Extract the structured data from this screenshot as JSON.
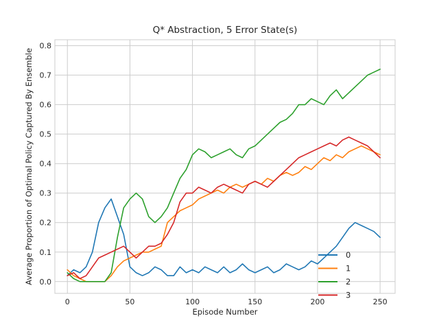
{
  "chart_data": {
    "type": "line",
    "title": "Q* Abstraction, 5 Error State(s)",
    "xlabel": "Episode Number",
    "ylabel": "Average Proportion of Optimal Policy Captured By Ensemble",
    "xlim": [
      -10,
      262
    ],
    "ylim": [
      -0.04,
      0.82
    ],
    "xticks": [
      0,
      50,
      100,
      150,
      200,
      250
    ],
    "yticks": [
      0.0,
      0.1,
      0.2,
      0.3,
      0.4,
      0.5,
      0.6,
      0.7,
      0.8
    ],
    "ytick_labels": [
      "0.0",
      "0.1",
      "0.2",
      "0.3",
      "0.4",
      "0.5",
      "0.6",
      "0.7",
      "0.8"
    ],
    "grid": true,
    "legend_position": "lower-right",
    "x_step": 5,
    "series": [
      {
        "name": "0",
        "color": "#1f77b4",
        "values": [
          0.02,
          0.04,
          0.03,
          0.05,
          0.1,
          0.2,
          0.25,
          0.28,
          0.22,
          0.16,
          0.05,
          0.03,
          0.02,
          0.03,
          0.05,
          0.04,
          0.02,
          0.02,
          0.05,
          0.03,
          0.04,
          0.03,
          0.05,
          0.04,
          0.03,
          0.05,
          0.03,
          0.04,
          0.06,
          0.04,
          0.03,
          0.04,
          0.05,
          0.03,
          0.04,
          0.06,
          0.05,
          0.04,
          0.05,
          0.07,
          0.06,
          0.08,
          0.1,
          0.12,
          0.15,
          0.18,
          0.2,
          0.19,
          0.18,
          0.17,
          0.15
        ]
      },
      {
        "name": "1",
        "color": "#ff7f0e",
        "values": [
          0.04,
          0.02,
          0.01,
          0.0,
          0.0,
          0.0,
          0.0,
          0.02,
          0.05,
          0.07,
          0.08,
          0.09,
          0.1,
          0.1,
          0.11,
          0.12,
          0.2,
          0.22,
          0.24,
          0.25,
          0.26,
          0.28,
          0.29,
          0.3,
          0.31,
          0.3,
          0.32,
          0.33,
          0.32,
          0.33,
          0.34,
          0.33,
          0.35,
          0.34,
          0.36,
          0.37,
          0.36,
          0.37,
          0.39,
          0.38,
          0.4,
          0.42,
          0.41,
          0.43,
          0.42,
          0.44,
          0.45,
          0.46,
          0.45,
          0.44,
          0.43
        ]
      },
      {
        "name": "2",
        "color": "#2ca02c",
        "values": [
          0.03,
          0.01,
          0.0,
          0.0,
          0.0,
          0.0,
          0.0,
          0.03,
          0.15,
          0.25,
          0.28,
          0.3,
          0.28,
          0.22,
          0.2,
          0.22,
          0.25,
          0.3,
          0.35,
          0.38,
          0.43,
          0.45,
          0.44,
          0.42,
          0.43,
          0.44,
          0.45,
          0.43,
          0.42,
          0.45,
          0.46,
          0.48,
          0.5,
          0.52,
          0.54,
          0.55,
          0.57,
          0.6,
          0.6,
          0.62,
          0.61,
          0.6,
          0.63,
          0.65,
          0.62,
          0.64,
          0.66,
          0.68,
          0.7,
          0.71,
          0.72
        ]
      },
      {
        "name": "3",
        "color": "#d62728",
        "values": [
          0.02,
          0.03,
          0.01,
          0.02,
          0.05,
          0.08,
          0.09,
          0.1,
          0.11,
          0.12,
          0.1,
          0.08,
          0.1,
          0.12,
          0.12,
          0.13,
          0.16,
          0.2,
          0.27,
          0.3,
          0.3,
          0.32,
          0.31,
          0.3,
          0.32,
          0.33,
          0.32,
          0.31,
          0.3,
          0.33,
          0.34,
          0.33,
          0.32,
          0.34,
          0.36,
          0.38,
          0.4,
          0.42,
          0.43,
          0.44,
          0.45,
          0.46,
          0.47,
          0.46,
          0.48,
          0.49,
          0.48,
          0.47,
          0.46,
          0.44,
          0.42
        ]
      }
    ]
  }
}
